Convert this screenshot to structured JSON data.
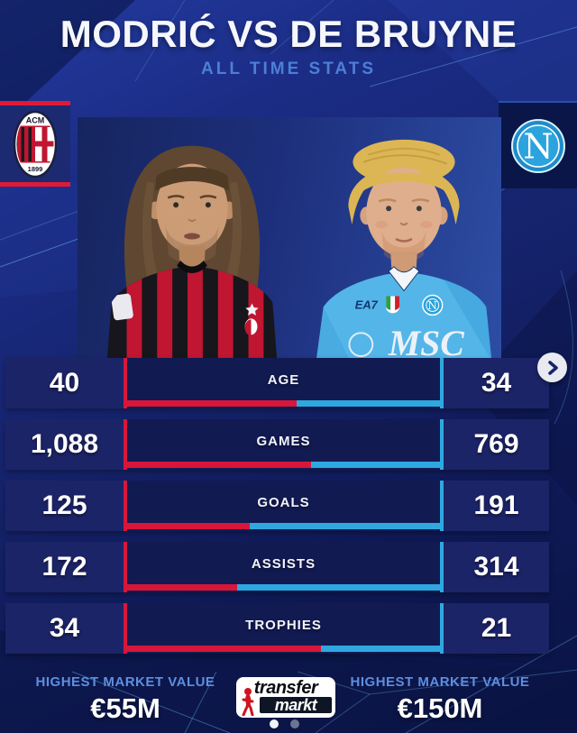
{
  "header": {
    "title": "MODRIĆ VS DE BRUYNE",
    "subtitle": "ALL TIME STATS"
  },
  "badges": {
    "left": {
      "team": "AC Milan",
      "monogram": "ACM",
      "year": "1899"
    },
    "right": {
      "team": "SSC Napoli",
      "monogram": "N"
    }
  },
  "players": {
    "left": {
      "name": "Modrić"
    },
    "right": {
      "name": "De Bruyne",
      "jersey_brand": "EA7",
      "jersey_sponsor": "MSC"
    }
  },
  "chart_data": {
    "type": "bar",
    "layout": "opposed-horizontal-tug-of-war",
    "title": "MODRIĆ VS DE BRUYNE",
    "subtitle": "ALL TIME STATS",
    "categories": [
      "AGE",
      "GAMES",
      "GOALS",
      "ASSISTS",
      "TROPHIES"
    ],
    "series": [
      {
        "name": "Modrić",
        "side": "left",
        "color": "#d8163a",
        "values": [
          40,
          1088,
          125,
          172,
          34
        ],
        "labels": [
          "40",
          "1,088",
          "125",
          "172",
          "34"
        ]
      },
      {
        "name": "De Bruyne",
        "side": "right",
        "color": "#2fa8e0",
        "values": [
          34,
          769,
          191,
          314,
          21
        ],
        "labels": [
          "34",
          "769",
          "191",
          "314",
          "21"
        ]
      }
    ],
    "legend_position": "none",
    "grid": false
  },
  "footer": {
    "left_label": "HIGHEST MARKET VALUE",
    "left_value": "€55M",
    "right_label": "HIGHEST MARKET VALUE",
    "right_value": "€150M",
    "logo_top": "transfer",
    "logo_bottom": "markt",
    "pagination": {
      "dots": 2,
      "active": 1
    }
  },
  "controls": {
    "next": "chevron-right"
  },
  "colors": {
    "accent_red": "#d8163a",
    "accent_blue": "#2fa8e0",
    "band_navy": "#1c2468",
    "box_navy": "#121a52",
    "subtitle_blue": "#4c7fd6",
    "footer_label_blue": "#5d8fe0",
    "milan_red": "#e11937",
    "napoli_blue": "#2ba3dd"
  }
}
